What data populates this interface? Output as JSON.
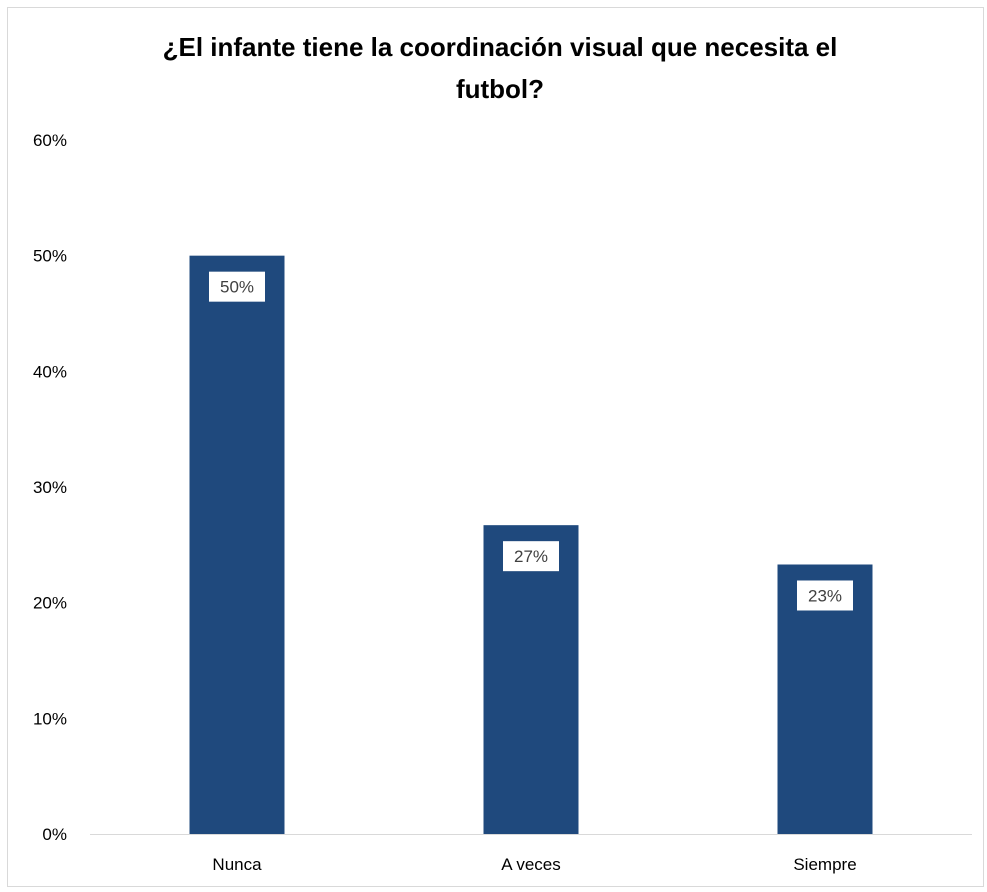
{
  "chart_data": {
    "type": "bar",
    "title": "¿El infante tiene la coordinación visual que necesita el\nfutbol?",
    "xlabel": "",
    "ylabel": "",
    "categories": [
      "Nunca",
      "A veces",
      "Siempre"
    ],
    "values": [
      0.5,
      0.267,
      0.233
    ],
    "data_labels": [
      "50%",
      "27%",
      "23%"
    ],
    "y_ticks": [
      0,
      0.1,
      0.2,
      0.3,
      0.4,
      0.5,
      0.6
    ],
    "y_tick_labels": [
      "0%",
      "10%",
      "20%",
      "30%",
      "40%",
      "50%",
      "60%"
    ],
    "ylim": [
      0,
      0.6
    ],
    "grid": false,
    "legend": "none",
    "bar_color": "#1f497d",
    "data_label_background": "#ffffff"
  }
}
